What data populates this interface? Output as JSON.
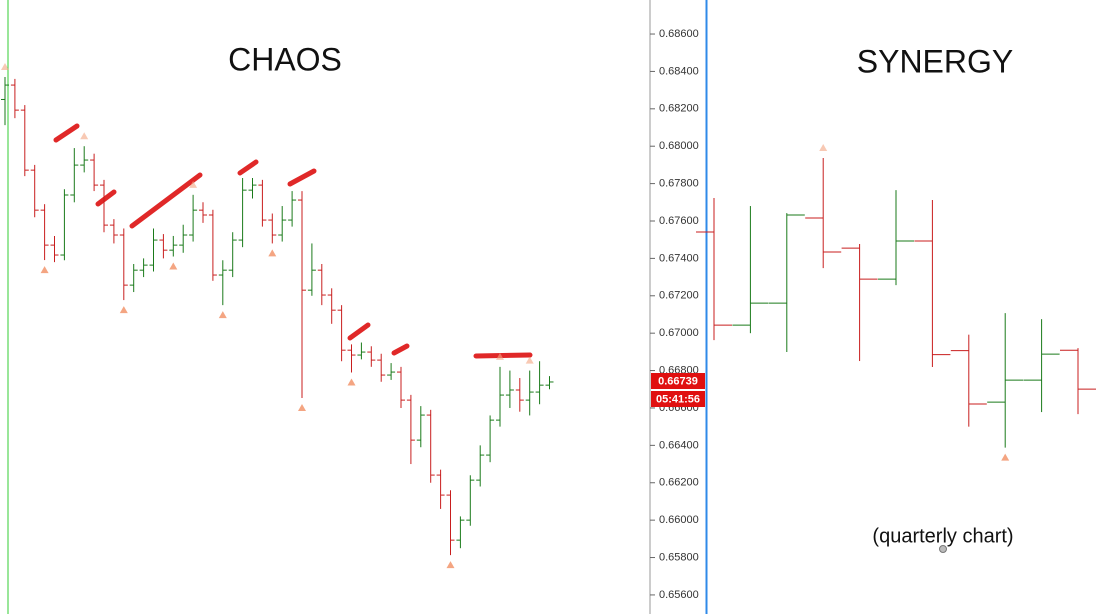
{
  "price_axis": {
    "ylim": [
      0.65498,
      0.68782
    ],
    "yticks": [
      {
        "value": 0.656,
        "label": "0.65600"
      },
      {
        "value": 0.658,
        "label": "0.65800"
      },
      {
        "value": 0.66,
        "label": "0.66000"
      },
      {
        "value": 0.662,
        "label": "0.66200"
      },
      {
        "value": 0.664,
        "label": "0.66400"
      },
      {
        "value": 0.666,
        "label": "0.66600"
      },
      {
        "value": 0.668,
        "label": "0.66800"
      },
      {
        "value": 0.67,
        "label": "0.67000"
      },
      {
        "value": 0.672,
        "label": "0.67200"
      },
      {
        "value": 0.674,
        "label": "0.67400"
      },
      {
        "value": 0.676,
        "label": "0.67600"
      },
      {
        "value": 0.678,
        "label": "0.67800"
      },
      {
        "value": 0.68,
        "label": "0.68000"
      },
      {
        "value": 0.682,
        "label": "0.68200"
      },
      {
        "value": 0.684,
        "label": "0.68400"
      },
      {
        "value": 0.686,
        "label": "0.68600"
      }
    ],
    "current_price": 0.66739,
    "timer": "05:41:56"
  },
  "chart_data": [
    {
      "type": "ohlc",
      "title": "CHAOS",
      "up_color": "#1a7a1a",
      "down_color": "#c81e1e",
      "fractal_color": "#f4a582",
      "open": [
        0.6825,
        0.68327,
        0.68193,
        0.67872,
        0.67658,
        0.67471,
        0.67418,
        0.67739,
        0.67899,
        0.67926,
        0.67792,
        0.67578,
        0.67525,
        0.67257,
        0.67337,
        0.67364,
        0.67498,
        0.67444,
        0.67471,
        0.67525,
        0.67658,
        0.67632,
        0.67311,
        0.67337,
        0.67498,
        0.67765,
        0.67792,
        0.67605,
        0.67525,
        0.67605,
        0.67712,
        0.6723,
        0.67337,
        0.67204,
        0.67123,
        0.66909,
        0.66883,
        0.66899,
        0.66856,
        0.66776,
        0.66792,
        0.66642,
        0.66428,
        0.66562,
        0.66241,
        0.66134,
        0.65893,
        0.66,
        0.66214,
        0.66348,
        0.66535,
        0.66669,
        0.66696,
        0.66642,
        0.66685,
        0.66722
      ],
      "high": [
        0.6837,
        0.6836,
        0.6822,
        0.679,
        0.6769,
        0.6752,
        0.6777,
        0.6799,
        0.68,
        0.6796,
        0.6782,
        0.6761,
        0.6756,
        0.6737,
        0.674,
        0.6756,
        0.6753,
        0.6752,
        0.6758,
        0.6774,
        0.677,
        0.6766,
        0.6739,
        0.6754,
        0.6783,
        0.6783,
        0.6782,
        0.6764,
        0.6768,
        0.6776,
        0.6776,
        0.6748,
        0.6737,
        0.6724,
        0.6715,
        0.6694,
        0.6695,
        0.6693,
        0.6689,
        0.6684,
        0.6682,
        0.6667,
        0.6661,
        0.6659,
        0.6627,
        0.6616,
        0.6602,
        0.6624,
        0.664,
        0.6656,
        0.6682,
        0.668,
        0.6676,
        0.668,
        0.6685,
        0.6677
      ],
      "low": [
        0.68113,
        0.6815,
        0.6784,
        0.6762,
        0.67391,
        0.6738,
        0.6739,
        0.677,
        0.6786,
        0.6776,
        0.6754,
        0.6748,
        0.67177,
        0.6722,
        0.673,
        0.6733,
        0.674,
        0.6741,
        0.6743,
        0.6749,
        0.6759,
        0.6728,
        0.6715,
        0.673,
        0.6746,
        0.6772,
        0.6757,
        0.6748,
        0.6749,
        0.6757,
        0.66653,
        0.672,
        0.6715,
        0.6705,
        0.6685,
        0.6679,
        0.6686,
        0.6682,
        0.6674,
        0.6675,
        0.666,
        0.663,
        0.6639,
        0.662,
        0.6606,
        0.65813,
        0.6585,
        0.6597,
        0.6618,
        0.6631,
        0.665,
        0.666,
        0.6658,
        0.6656,
        0.6662,
        0.667
      ],
      "close": [
        0.68327,
        0.68193,
        0.67872,
        0.67658,
        0.67471,
        0.67418,
        0.67739,
        0.67899,
        0.67926,
        0.67792,
        0.67578,
        0.67525,
        0.67257,
        0.67337,
        0.67364,
        0.67498,
        0.67444,
        0.67471,
        0.67525,
        0.67658,
        0.67632,
        0.67311,
        0.67337,
        0.67498,
        0.67765,
        0.67792,
        0.67605,
        0.67525,
        0.67605,
        0.67712,
        0.6723,
        0.67337,
        0.67204,
        0.67123,
        0.66909,
        0.66883,
        0.66899,
        0.66856,
        0.66776,
        0.66792,
        0.66642,
        0.66428,
        0.66562,
        0.66241,
        0.66134,
        0.65893,
        0.66,
        0.66214,
        0.66348,
        0.66535,
        0.66669,
        0.66696,
        0.66642,
        0.66685,
        0.66722,
        0.66739
      ],
      "down_fractals": [
        4,
        12,
        17,
        22,
        27,
        30,
        35,
        45
      ],
      "up_fractals": [
        0,
        8,
        19,
        50,
        53
      ]
    },
    {
      "type": "ohlc",
      "title": "SYNERGY",
      "subtitle": "(quarterly chart)",
      "up_color": "#1a7a1a",
      "down_color": "#c81e1e",
      "fractal_color": "#f4a582",
      "open": [
        0.67541,
        0.67043,
        0.67161,
        0.67616,
        0.67455,
        0.67289,
        0.67493,
        0.66907,
        0.66631,
        0.66749,
        0.66909
      ],
      "high": [
        0.67723,
        0.6768,
        0.67642,
        0.67937,
        0.67477,
        0.67765,
        0.67712,
        0.66992,
        0.67107,
        0.67075,
        0.6692
      ],
      "low": [
        0.66963,
        0.67,
        0.66899,
        0.67348,
        0.66851,
        0.67257,
        0.66819,
        0.665,
        0.66388,
        0.66578,
        0.66567
      ],
      "close": [
        0.67043,
        0.67161,
        0.67632,
        0.67434,
        0.67289,
        0.67493,
        0.66885,
        0.66621,
        0.66749,
        0.66888,
        0.66701
      ],
      "down_fractals": [
        8
      ],
      "up_fractals": [
        3
      ]
    }
  ]
}
